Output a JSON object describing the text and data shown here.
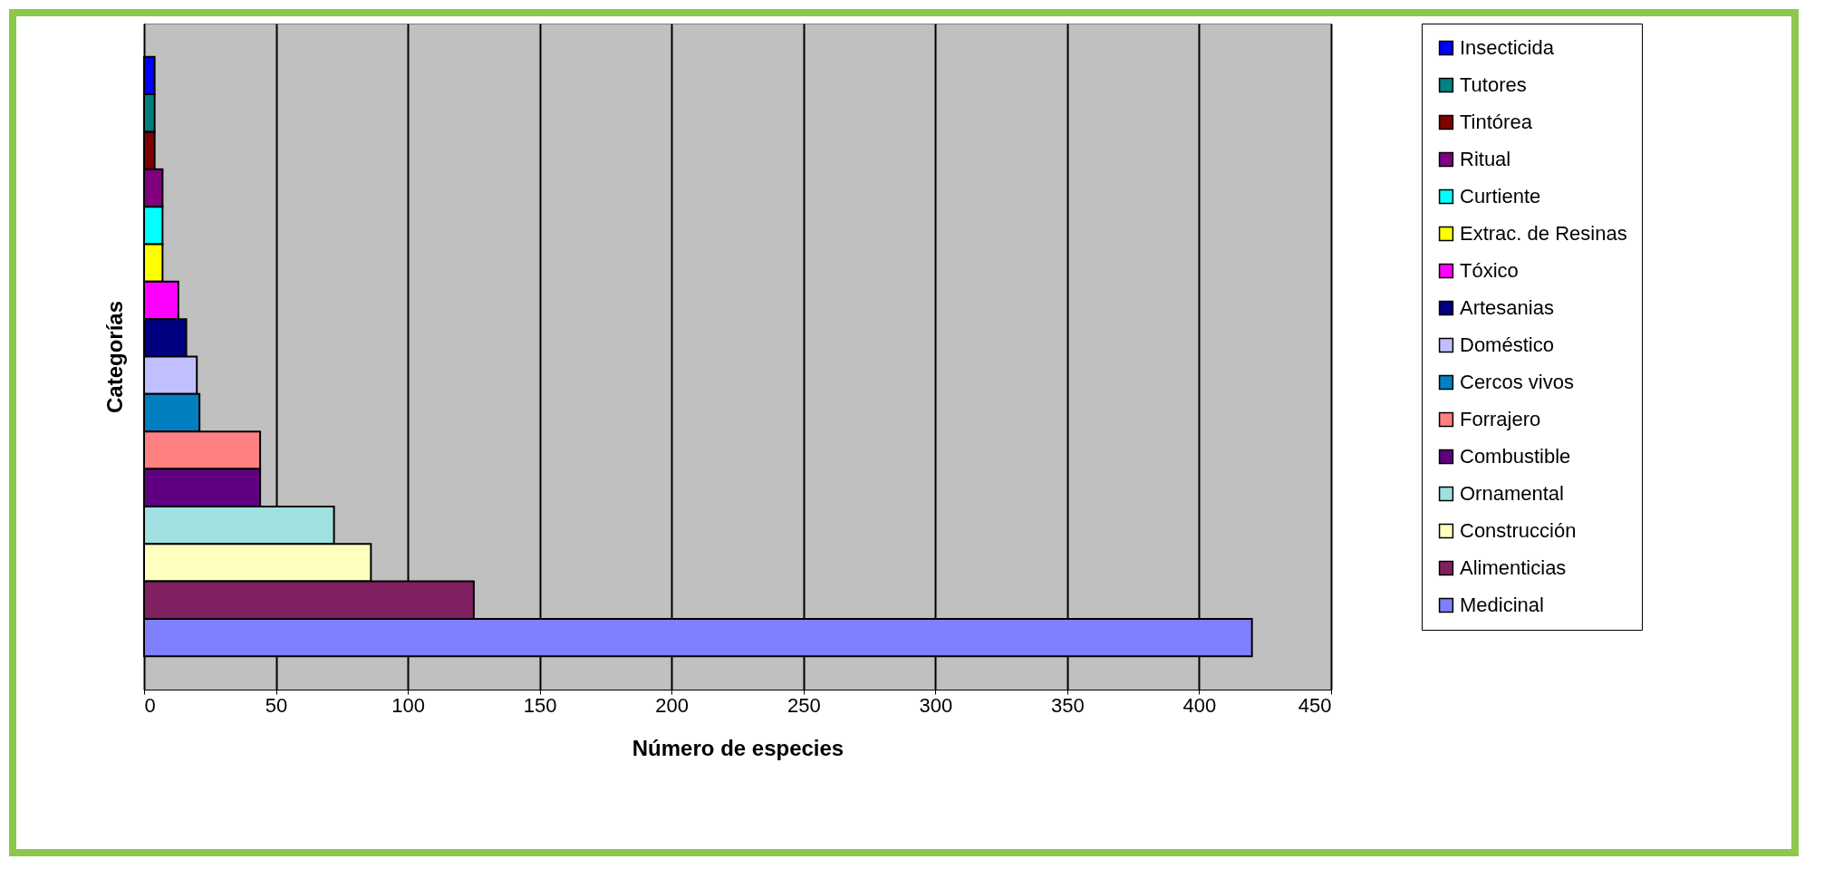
{
  "chart_data": {
    "type": "bar",
    "orientation": "horizontal",
    "xlabel": "Número de especies",
    "ylabel": "Categorías",
    "categories": [
      null
    ],
    "series": [
      {
        "name": "Insecticida",
        "color": "#0000ff",
        "values": [
          4
        ]
      },
      {
        "name": "Tutores",
        "color": "#008080",
        "values": [
          4
        ]
      },
      {
        "name": "Tintórea",
        "color": "#800000",
        "values": [
          4
        ]
      },
      {
        "name": "Ritual",
        "color": "#800080",
        "values": [
          7
        ]
      },
      {
        "name": "Curtiente",
        "color": "#00ffff",
        "values": [
          7
        ]
      },
      {
        "name": "Extrac. de Resinas",
        "color": "#ffff00",
        "values": [
          7
        ]
      },
      {
        "name": "Tóxico",
        "color": "#ff00ff",
        "values": [
          13
        ]
      },
      {
        "name": "Artesanias",
        "color": "#000080",
        "values": [
          16
        ]
      },
      {
        "name": "Doméstico",
        "color": "#c0c0ff",
        "values": [
          20
        ]
      },
      {
        "name": "Cercos vivos",
        "color": "#0080c0",
        "values": [
          21
        ]
      },
      {
        "name": "Forrajero",
        "color": "#ff8080",
        "values": [
          44
        ]
      },
      {
        "name": "Combustible",
        "color": "#600080",
        "values": [
          44
        ]
      },
      {
        "name": "Ornamental",
        "color": "#a0e0e0",
        "values": [
          72
        ]
      },
      {
        "name": "Construcción",
        "color": "#ffffc0",
        "values": [
          86
        ]
      },
      {
        "name": "Alimenticias",
        "color": "#802060",
        "values": [
          125
        ]
      },
      {
        "name": "Medicinal",
        "color": "#8080ff",
        "values": [
          420
        ]
      }
    ],
    "xlim": [
      0,
      450
    ],
    "xticks": [
      0,
      50,
      100,
      150,
      200,
      250,
      300,
      350,
      400,
      450
    ],
    "grid": "x",
    "legend": "right",
    "tick_labels": "x"
  }
}
